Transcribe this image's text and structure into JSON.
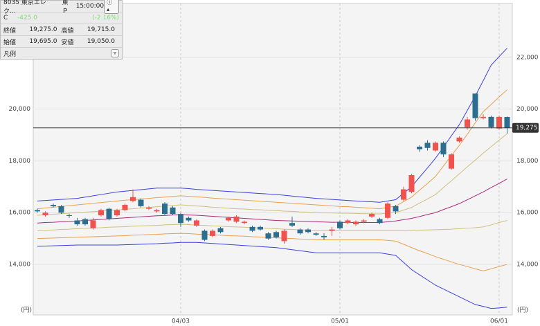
{
  "panel": {
    "ticker": "8035 東京エレク…",
    "market": "東Ｐ",
    "time": "15:00:00",
    "row_label": "C",
    "change": "-425.0",
    "change_pct": "(-2.16%)",
    "close_label": "終値",
    "close": "19,275.0",
    "high_label": "高値",
    "high": "19,715.0",
    "open_label": "始値",
    "open": "19,695.0",
    "low_label": "安値",
    "low": "19,050.0",
    "legend": "凡例"
  },
  "chart_data": {
    "type": "candlestick",
    "categories": [
      null,
      null,
      null,
      null,
      null,
      null,
      null,
      null,
      null,
      null,
      null,
      null,
      null,
      null,
      null,
      null,
      null,
      null,
      "04/03",
      null,
      null,
      null,
      null,
      null,
      null,
      null,
      null,
      null,
      null,
      null,
      null,
      null,
      null,
      null,
      null,
      null,
      null,
      null,
      "05/01",
      null,
      null,
      null,
      null,
      null,
      null,
      null,
      null,
      null,
      null,
      null,
      null,
      null,
      null,
      null,
      null,
      null,
      null,
      null,
      "06/01",
      null
    ],
    "open": [
      16100,
      15900,
      16300,
      16250,
      15900,
      15700,
      15750,
      15400,
      15900,
      16150,
      15900,
      16100,
      16450,
      16500,
      16150,
      16050,
      16350,
      16200,
      15950,
      15800,
      15500,
      15300,
      15100,
      15400,
      15700,
      15650,
      15600,
      15450,
      15450,
      15200,
      15250,
      14900,
      15600,
      15350,
      15350,
      15200,
      15100,
      15300,
      15650,
      15600,
      15550,
      15650,
      15850,
      15750,
      15800,
      16250,
      16500,
      16800,
      18550,
      18700,
      18400,
      18700,
      17700,
      18750,
      19300,
      20600,
      19650,
      19700,
      19250,
      19695
    ],
    "high": [
      16150,
      16050,
      16350,
      16300,
      15950,
      15800,
      15800,
      15800,
      16150,
      16200,
      16150,
      16350,
      16900,
      16550,
      16250,
      16150,
      16400,
      16250,
      16000,
      15850,
      15750,
      15350,
      15350,
      15450,
      15850,
      15900,
      15700,
      15500,
      15500,
      15250,
      15300,
      15350,
      15850,
      15400,
      15400,
      15250,
      15200,
      15450,
      15700,
      15750,
      15700,
      15750,
      16000,
      15800,
      16400,
      16300,
      17000,
      17500,
      18600,
      18800,
      18750,
      18750,
      18300,
      18950,
      19700,
      20600,
      19800,
      19750,
      19750,
      19715
    ],
    "low": [
      16000,
      15850,
      16200,
      15950,
      15800,
      15500,
      15500,
      15350,
      15850,
      15700,
      15850,
      16050,
      16400,
      16200,
      16100,
      16000,
      15900,
      15900,
      15450,
      15650,
      15450,
      14900,
      15050,
      15200,
      15650,
      15600,
      15550,
      15250,
      15300,
      14950,
      15000,
      14800,
      15450,
      15150,
      15200,
      15100,
      14950,
      15100,
      15350,
      15550,
      15500,
      15600,
      15800,
      15550,
      15750,
      15950,
      16450,
      16750,
      18350,
      18400,
      18350,
      18150,
      17650,
      18700,
      19200,
      19550,
      19600,
      19250,
      19200,
      19050
    ],
    "close": [
      16050,
      16000,
      16250,
      16000,
      15880,
      15550,
      15550,
      15700,
      16100,
      15750,
      16100,
      16300,
      16600,
      16250,
      16200,
      16100,
      15950,
      15950,
      15600,
      15700,
      15700,
      14950,
      15300,
      15250,
      15800,
      15850,
      15650,
      15300,
      15350,
      15000,
      15050,
      15300,
      15500,
      15200,
      15250,
      15150,
      15050,
      15350,
      15400,
      15700,
      15650,
      15700,
      15950,
      15600,
      16350,
      16050,
      16900,
      17450,
      18450,
      18500,
      18700,
      18250,
      18250,
      18900,
      19600,
      19650,
      19700,
      19300,
      19700,
      19275
    ],
    "up_color": "#f0524e",
    "down_color": "#2b6e8f",
    "series": [
      {
        "color": "#3b3fe0",
        "values": [
          16450,
          16470,
          16490,
          16510,
          16530,
          16550,
          16600,
          16650,
          16700,
          16750,
          16800,
          16830,
          16860,
          16890,
          16920,
          16950,
          16950,
          16950,
          16950,
          16930,
          16900,
          16880,
          16860,
          16840,
          16820,
          16800,
          16780,
          16760,
          16740,
          16720,
          16700,
          16670,
          16640,
          16610,
          16580,
          16550,
          16530,
          16510,
          16490,
          16470,
          16450,
          16430,
          16420,
          16400,
          16450,
          16500,
          16750,
          17000,
          17370,
          17730,
          18100,
          18530,
          18970,
          19400,
          19950,
          20500,
          21100,
          21700,
          22030,
          22350
        ]
      },
      {
        "color": "#e8a050",
        "values": [
          16150,
          16180,
          16210,
          16240,
          16270,
          16300,
          16330,
          16360,
          16390,
          16420,
          16450,
          16480,
          16500,
          16530,
          16550,
          16580,
          16600,
          16630,
          16650,
          16630,
          16610,
          16590,
          16560,
          16540,
          16520,
          16500,
          16480,
          16460,
          16440,
          16420,
          16400,
          16380,
          16360,
          16340,
          16320,
          16300,
          16280,
          16260,
          16240,
          16230,
          16210,
          16190,
          16170,
          16150,
          16200,
          16250,
          16430,
          16600,
          16870,
          17130,
          17400,
          17800,
          18200,
          18600,
          19030,
          19470,
          19900,
          20180,
          20470,
          20750
        ]
      },
      {
        "color": "#cfc07a",
        "values": [
          15900,
          15920,
          15940,
          15960,
          15980,
          16000,
          16020,
          16040,
          16060,
          16080,
          16100,
          16130,
          16150,
          16180,
          16200,
          16230,
          16250,
          16280,
          16300,
          16280,
          16260,
          16240,
          16210,
          16190,
          16170,
          16150,
          16140,
          16120,
          16110,
          16090,
          16080,
          16060,
          16050,
          16030,
          16020,
          16000,
          15990,
          15990,
          15980,
          15980,
          15970,
          15960,
          15960,
          15950,
          15980,
          16000,
          16100,
          16200,
          16370,
          16530,
          16700,
          16970,
          17230,
          17500,
          17770,
          18030,
          18300,
          18550,
          18800,
          19050
        ]
      },
      {
        "color": "#b0287a",
        "values": [
          15600,
          15620,
          15630,
          15650,
          15660,
          15680,
          15700,
          15720,
          15740,
          15760,
          15780,
          15800,
          15820,
          15840,
          15860,
          15880,
          15890,
          15910,
          15920,
          15910,
          15900,
          15880,
          15860,
          15840,
          15820,
          15800,
          15780,
          15760,
          15740,
          15720,
          15700,
          15690,
          15680,
          15670,
          15660,
          15650,
          15640,
          15630,
          15630,
          15620,
          15620,
          15620,
          15620,
          15620,
          15650,
          15680,
          15730,
          15780,
          15850,
          15930,
          16000,
          16120,
          16230,
          16350,
          16500,
          16650,
          16800,
          16970,
          17130,
          17300
        ]
      },
      {
        "color": "#cfc07a",
        "values": [
          15300,
          15320,
          15330,
          15350,
          15360,
          15380,
          15390,
          15410,
          15420,
          15440,
          15450,
          15460,
          15480,
          15490,
          15500,
          15510,
          15530,
          15540,
          15550,
          15540,
          15520,
          15510,
          15490,
          15480,
          15460,
          15450,
          15440,
          15420,
          15410,
          15390,
          15380,
          15360,
          15350,
          15330,
          15320,
          15300,
          15300,
          15300,
          15300,
          15300,
          15300,
          15300,
          15300,
          15300,
          15300,
          15300,
          15300,
          15310,
          15320,
          15330,
          15340,
          15350,
          15360,
          15380,
          15400,
          15420,
          15450,
          15530,
          15620,
          15700
        ]
      },
      {
        "color": "#e8a050",
        "values": [
          15000,
          15010,
          15020,
          15030,
          15040,
          15050,
          15060,
          15070,
          15080,
          15090,
          15100,
          15110,
          15130,
          15140,
          15150,
          15160,
          15180,
          15190,
          15200,
          15190,
          15170,
          15160,
          15140,
          15130,
          15110,
          15100,
          15090,
          15070,
          15060,
          15040,
          15030,
          15010,
          15000,
          14980,
          14970,
          14950,
          14950,
          14950,
          14950,
          14950,
          14950,
          14950,
          14950,
          14950,
          14930,
          14900,
          14780,
          14650,
          14530,
          14420,
          14300,
          14200,
          14100,
          14000,
          13920,
          13830,
          13750,
          13830,
          13920,
          14000
        ]
      },
      {
        "color": "#3b3fe0",
        "values": [
          14700,
          14710,
          14720,
          14730,
          14740,
          14750,
          14750,
          14750,
          14750,
          14750,
          14750,
          14760,
          14770,
          14780,
          14790,
          14800,
          14820,
          14830,
          14850,
          14850,
          14850,
          14830,
          14810,
          14790,
          14770,
          14750,
          14730,
          14710,
          14690,
          14670,
          14650,
          14610,
          14570,
          14530,
          14490,
          14450,
          14450,
          14450,
          14450,
          14450,
          14450,
          14450,
          14450,
          14450,
          14400,
          14350,
          14080,
          13800,
          13600,
          13400,
          13200,
          13050,
          12900,
          12750,
          12600,
          12450,
          12380,
          12300,
          12320,
          12350
        ]
      }
    ],
    "ylim": [
      12050,
      24080
    ],
    "yticks": [
      {
        "value": 14000,
        "label": "14,000"
      },
      {
        "value": 16000,
        "label": "16,000"
      },
      {
        "value": 18000,
        "label": "18,000"
      },
      {
        "value": 20000,
        "label": "20,000"
      },
      {
        "value": 22000,
        "label": "22,000"
      }
    ],
    "y_unit": "(円)",
    "last_price": {
      "value": 19275,
      "label": "19,275"
    },
    "grid": true
  }
}
